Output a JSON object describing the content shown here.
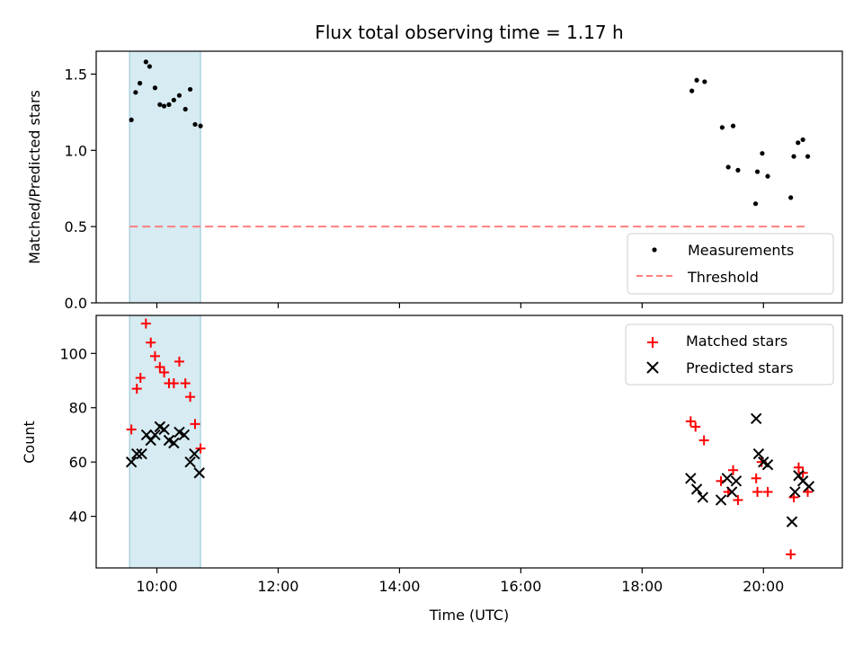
{
  "chart_data": [
    {
      "type": "scatter",
      "title": "Flux total observing time = 1.17 h",
      "ylabel": "Matched/Predicted stars",
      "xlabel": "",
      "x_range_hours": [
        9.0,
        21.3
      ],
      "ylim": [
        0,
        1.65
      ],
      "yticks": [
        0.0,
        0.5,
        1.0,
        1.5
      ],
      "ytick_labels": [
        "0.0",
        "0.5",
        "1.0",
        "1.5"
      ],
      "shaded_interval": [
        9.55,
        10.72
      ],
      "shaded_color": "#add8e6",
      "grid": false,
      "legend_position": "lower right",
      "series": [
        {
          "name": "Measurements",
          "marker": "dot",
          "color": "#000000",
          "points": [
            [
              9.58,
              1.2
            ],
            [
              9.65,
              1.38
            ],
            [
              9.72,
              1.44
            ],
            [
              9.82,
              1.58
            ],
            [
              9.88,
              1.55
            ],
            [
              9.97,
              1.41
            ],
            [
              10.05,
              1.3
            ],
            [
              10.12,
              1.29
            ],
            [
              10.2,
              1.3
            ],
            [
              10.28,
              1.33
            ],
            [
              10.37,
              1.36
            ],
            [
              10.47,
              1.27
            ],
            [
              10.55,
              1.4
            ],
            [
              10.63,
              1.17
            ],
            [
              10.72,
              1.16
            ],
            [
              18.82,
              1.39
            ],
            [
              18.9,
              1.46
            ],
            [
              19.03,
              1.45
            ],
            [
              19.32,
              1.15
            ],
            [
              19.42,
              0.89
            ],
            [
              19.5,
              1.16
            ],
            [
              19.58,
              0.87
            ],
            [
              19.87,
              0.65
            ],
            [
              19.9,
              0.86
            ],
            [
              19.98,
              0.98
            ],
            [
              20.07,
              0.83
            ],
            [
              20.45,
              0.69
            ],
            [
              20.5,
              0.96
            ],
            [
              20.57,
              1.05
            ],
            [
              20.65,
              1.07
            ],
            [
              20.73,
              0.96
            ]
          ]
        },
        {
          "name": "Threshold",
          "type": "line",
          "style": "dashed",
          "color": "#ff7f7f",
          "x": [
            9.55,
            20.75
          ],
          "values": [
            0.5,
            0.5
          ]
        }
      ]
    },
    {
      "type": "scatter",
      "title": "",
      "ylabel": "Count",
      "xlabel": "Time (UTC)",
      "x_range_hours": [
        9.0,
        21.3
      ],
      "xticks_hours": [
        10,
        12,
        14,
        16,
        18,
        20
      ],
      "xtick_labels": [
        "10:00",
        "12:00",
        "14:00",
        "16:00",
        "18:00",
        "20:00"
      ],
      "ylim": [
        21,
        114
      ],
      "yticks": [
        40,
        60,
        80,
        100
      ],
      "ytick_labels": [
        "40",
        "60",
        "80",
        "100"
      ],
      "shaded_interval": [
        9.55,
        10.72
      ],
      "shaded_color": "#add8e6",
      "grid": false,
      "legend_position": "upper right",
      "series": [
        {
          "name": "Matched stars",
          "marker": "plus",
          "color": "#ff0000",
          "points": [
            [
              9.58,
              72
            ],
            [
              9.67,
              87
            ],
            [
              9.73,
              91
            ],
            [
              9.82,
              111
            ],
            [
              9.9,
              104
            ],
            [
              9.97,
              99
            ],
            [
              10.05,
              95
            ],
            [
              10.12,
              93
            ],
            [
              10.2,
              89
            ],
            [
              10.28,
              89
            ],
            [
              10.37,
              97
            ],
            [
              10.47,
              89
            ],
            [
              10.55,
              84
            ],
            [
              10.63,
              74
            ],
            [
              10.72,
              65
            ],
            [
              18.8,
              75
            ],
            [
              18.88,
              73
            ],
            [
              19.02,
              68
            ],
            [
              19.3,
              53
            ],
            [
              19.42,
              49
            ],
            [
              19.5,
              57
            ],
            [
              19.58,
              46
            ],
            [
              19.88,
              54
            ],
            [
              19.9,
              49
            ],
            [
              19.97,
              60
            ],
            [
              20.07,
              49
            ],
            [
              20.45,
              26
            ],
            [
              20.5,
              47
            ],
            [
              20.58,
              58
            ],
            [
              20.65,
              56
            ],
            [
              20.73,
              49
            ]
          ]
        },
        {
          "name": "Predicted stars",
          "marker": "x",
          "color": "#000000",
          "points": [
            [
              9.58,
              60
            ],
            [
              9.67,
              63
            ],
            [
              9.75,
              63
            ],
            [
              9.83,
              70
            ],
            [
              9.9,
              68
            ],
            [
              9.97,
              70
            ],
            [
              10.05,
              73
            ],
            [
              10.12,
              72
            ],
            [
              10.2,
              68
            ],
            [
              10.28,
              67
            ],
            [
              10.37,
              71
            ],
            [
              10.45,
              70
            ],
            [
              10.55,
              60
            ],
            [
              10.62,
              63
            ],
            [
              10.7,
              56
            ],
            [
              18.8,
              54
            ],
            [
              18.9,
              50
            ],
            [
              19.0,
              47
            ],
            [
              19.3,
              46
            ],
            [
              19.4,
              54
            ],
            [
              19.48,
              49
            ],
            [
              19.55,
              53
            ],
            [
              19.88,
              76
            ],
            [
              19.92,
              63
            ],
            [
              20.0,
              60
            ],
            [
              20.07,
              59
            ],
            [
              20.47,
              38
            ],
            [
              20.52,
              49
            ],
            [
              20.58,
              55
            ],
            [
              20.65,
              53
            ],
            [
              20.75,
              51
            ]
          ]
        }
      ]
    }
  ]
}
